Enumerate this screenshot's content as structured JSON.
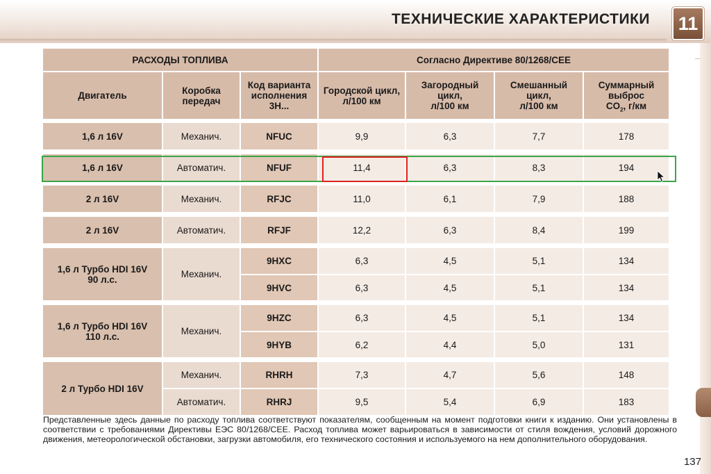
{
  "header": {
    "title": "ТЕХНИЧЕСКИЕ ХАРАКТЕРИСТИКИ",
    "chapter": "11"
  },
  "table": {
    "section_left": "РАСХОДЫ ТОПЛИВА",
    "section_right": "Согласно Директиве 80/1268/CEE",
    "columns": {
      "engine": "Двигатель",
      "gearbox_line1": "Коробка",
      "gearbox_line2": "передач",
      "code_line1": "Код варианта",
      "code_line2": "исполнения",
      "code_line3": "3Н...",
      "urban_line1": "Городской цикл,",
      "urban_line2": "л/100 км",
      "extra_line1": "Загородный",
      "extra_line2": "цикл,",
      "extra_line3": "л/100 км",
      "mixed_line1": "Смешанный",
      "mixed_line2": "цикл,",
      "mixed_line3": "л/100 км",
      "co2_line1": "Суммарный",
      "co2_line2": "выброс",
      "co2_line3_pre": "CO",
      "co2_line3_sub": "2",
      "co2_line3_post": ", г/км"
    },
    "rows": [
      {
        "engine": "1,6 л 16V",
        "gearbox": "Механич.",
        "code": "NFUC",
        "urban": "9,9",
        "extra": "6,3",
        "mixed": "7,7",
        "co2": "178"
      },
      {
        "engine": "1,6 л 16V",
        "gearbox": "Автоматич.",
        "code": "NFUF",
        "urban": "11,4",
        "extra": "6,3",
        "mixed": "8,3",
        "co2": "194"
      },
      {
        "engine": "2 л 16V",
        "gearbox": "Механич.",
        "code": "RFJC",
        "urban": "11,0",
        "extra": "6,1",
        "mixed": "7,9",
        "co2": "188"
      },
      {
        "engine": "2 л 16V",
        "gearbox": "Автоматич.",
        "code": "RFJF",
        "urban": "12,2",
        "extra": "6,3",
        "mixed": "8,4",
        "co2": "199"
      }
    ],
    "groups": [
      {
        "engine_line1": "1,6 л Турбо HDI 16V",
        "engine_line2": "90 л.с.",
        "gearbox": "Механич.",
        "rows": [
          {
            "code": "9HXC",
            "urban": "6,3",
            "extra": "4,5",
            "mixed": "5,1",
            "co2": "134"
          },
          {
            "code": "9HVC",
            "urban": "6,3",
            "extra": "4,5",
            "mixed": "5,1",
            "co2": "134"
          }
        ]
      },
      {
        "engine_line1": "1,6 л Турбо HDI 16V",
        "engine_line2": "110 л.с.",
        "gearbox": "Механич.",
        "rows": [
          {
            "code": "9HZC",
            "urban": "6,3",
            "extra": "4,5",
            "mixed": "5,1",
            "co2": "134"
          },
          {
            "code": "9HYB",
            "urban": "6,2",
            "extra": "4,4",
            "mixed": "5,0",
            "co2": "131"
          }
        ]
      },
      {
        "engine_line1": "2 л Турбо HDI 16V",
        "rows": [
          {
            "gearbox": "Механич.",
            "code": "RHRH",
            "urban": "7,3",
            "extra": "4,7",
            "mixed": "5,6",
            "co2": "148"
          },
          {
            "gearbox": "Автоматич.",
            "code": "RHRJ",
            "urban": "9,5",
            "extra": "5,4",
            "mixed": "6,9",
            "co2": "183"
          }
        ]
      }
    ]
  },
  "footnote": "Представленные здесь данные по расходу топлива соответствуют показателям, сообщенным на момент подготовки книги к изданию. Они установлены в соответствии с требованиями Директивы ЕЭС 80/1268/CEE. Расход топлива может варьироваться в зависимости от стиля вождения, условий дорожного движения, метеорологической обстановки, загрузки автомобиля, его технического состояния и используемого на нем дополнительного оборудования.",
  "page_number": "137",
  "colors": {
    "header_cell": "#d7bba9",
    "code_cell": "#e1c7b5",
    "value_cell": "#f4ebe5",
    "row_highlight": "#3aa549",
    "cell_highlight": "#e02020",
    "chapter_box": "#8a5f45"
  }
}
